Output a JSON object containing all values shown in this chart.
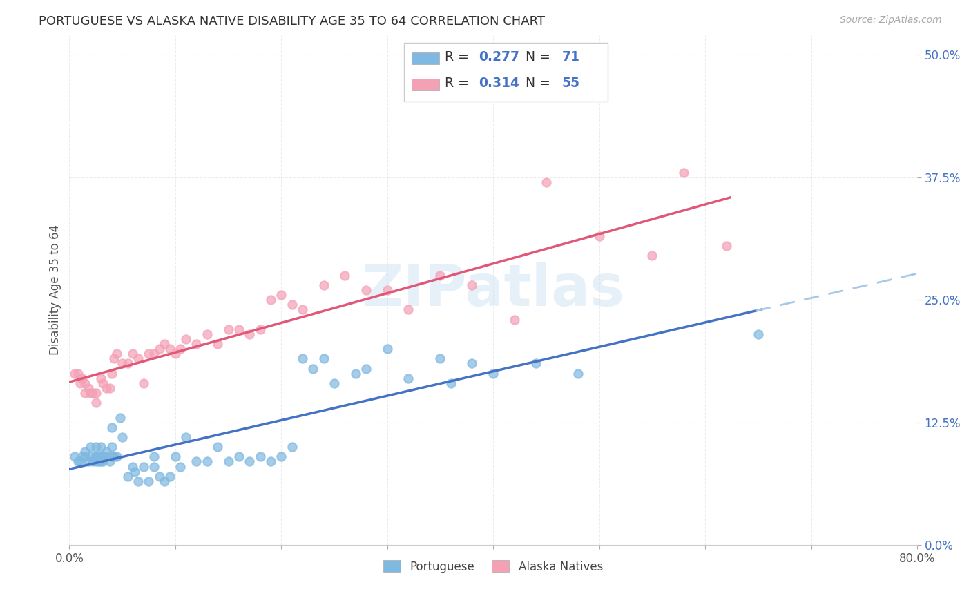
{
  "title": "PORTUGUESE VS ALASKA NATIVE DISABILITY AGE 35 TO 64 CORRELATION CHART",
  "source": "Source: ZipAtlas.com",
  "ylabel": "Disability Age 35 to 64",
  "xlim": [
    0.0,
    0.8
  ],
  "ylim": [
    0.0,
    0.52
  ],
  "R_portuguese": 0.277,
  "N_portuguese": 71,
  "R_alaska": 0.314,
  "N_alaska": 55,
  "color_portuguese": "#7fb8e0",
  "color_alaska": "#f4a0b5",
  "color_blue_text": "#4472c4",
  "watermark": "ZIPatlas",
  "portuguese_x": [
    0.005,
    0.008,
    0.01,
    0.012,
    0.015,
    0.015,
    0.018,
    0.02,
    0.02,
    0.022,
    0.025,
    0.025,
    0.025,
    0.025,
    0.025,
    0.028,
    0.03,
    0.03,
    0.03,
    0.03,
    0.032,
    0.032,
    0.035,
    0.035,
    0.038,
    0.04,
    0.04,
    0.04,
    0.042,
    0.045,
    0.048,
    0.05,
    0.055,
    0.06,
    0.062,
    0.065,
    0.07,
    0.075,
    0.08,
    0.08,
    0.085,
    0.09,
    0.095,
    0.1,
    0.105,
    0.11,
    0.12,
    0.13,
    0.14,
    0.15,
    0.16,
    0.17,
    0.18,
    0.19,
    0.2,
    0.21,
    0.22,
    0.23,
    0.24,
    0.25,
    0.27,
    0.28,
    0.3,
    0.32,
    0.35,
    0.36,
    0.38,
    0.4,
    0.44,
    0.48,
    0.65
  ],
  "portuguese_y": [
    0.09,
    0.085,
    0.085,
    0.09,
    0.09,
    0.095,
    0.085,
    0.09,
    0.1,
    0.085,
    0.085,
    0.09,
    0.09,
    0.09,
    0.1,
    0.085,
    0.09,
    0.085,
    0.09,
    0.1,
    0.085,
    0.09,
    0.09,
    0.095,
    0.085,
    0.1,
    0.09,
    0.12,
    0.09,
    0.09,
    0.13,
    0.11,
    0.07,
    0.08,
    0.075,
    0.065,
    0.08,
    0.065,
    0.08,
    0.09,
    0.07,
    0.065,
    0.07,
    0.09,
    0.08,
    0.11,
    0.085,
    0.085,
    0.1,
    0.085,
    0.09,
    0.085,
    0.09,
    0.085,
    0.09,
    0.1,
    0.19,
    0.18,
    0.19,
    0.165,
    0.175,
    0.18,
    0.2,
    0.17,
    0.19,
    0.165,
    0.185,
    0.175,
    0.185,
    0.175,
    0.215
  ],
  "alaska_x": [
    0.005,
    0.008,
    0.01,
    0.012,
    0.015,
    0.015,
    0.018,
    0.02,
    0.022,
    0.025,
    0.025,
    0.03,
    0.032,
    0.035,
    0.038,
    0.04,
    0.042,
    0.045,
    0.05,
    0.055,
    0.06,
    0.065,
    0.07,
    0.075,
    0.08,
    0.085,
    0.09,
    0.095,
    0.1,
    0.105,
    0.11,
    0.12,
    0.13,
    0.14,
    0.15,
    0.16,
    0.17,
    0.18,
    0.19,
    0.2,
    0.21,
    0.22,
    0.24,
    0.26,
    0.28,
    0.3,
    0.32,
    0.35,
    0.38,
    0.42,
    0.45,
    0.5,
    0.55,
    0.58,
    0.62
  ],
  "alaska_y": [
    0.175,
    0.175,
    0.165,
    0.17,
    0.165,
    0.155,
    0.16,
    0.155,
    0.155,
    0.155,
    0.145,
    0.17,
    0.165,
    0.16,
    0.16,
    0.175,
    0.19,
    0.195,
    0.185,
    0.185,
    0.195,
    0.19,
    0.165,
    0.195,
    0.195,
    0.2,
    0.205,
    0.2,
    0.195,
    0.2,
    0.21,
    0.205,
    0.215,
    0.205,
    0.22,
    0.22,
    0.215,
    0.22,
    0.25,
    0.255,
    0.245,
    0.24,
    0.265,
    0.275,
    0.26,
    0.26,
    0.24,
    0.275,
    0.265,
    0.23,
    0.37,
    0.315,
    0.295,
    0.38,
    0.305
  ],
  "background_color": "#ffffff",
  "grid_color": "#e8e8e8",
  "line_blue": "#4472c4",
  "line_blue_dash": "#a8c8e8",
  "line_pink": "#e05878"
}
